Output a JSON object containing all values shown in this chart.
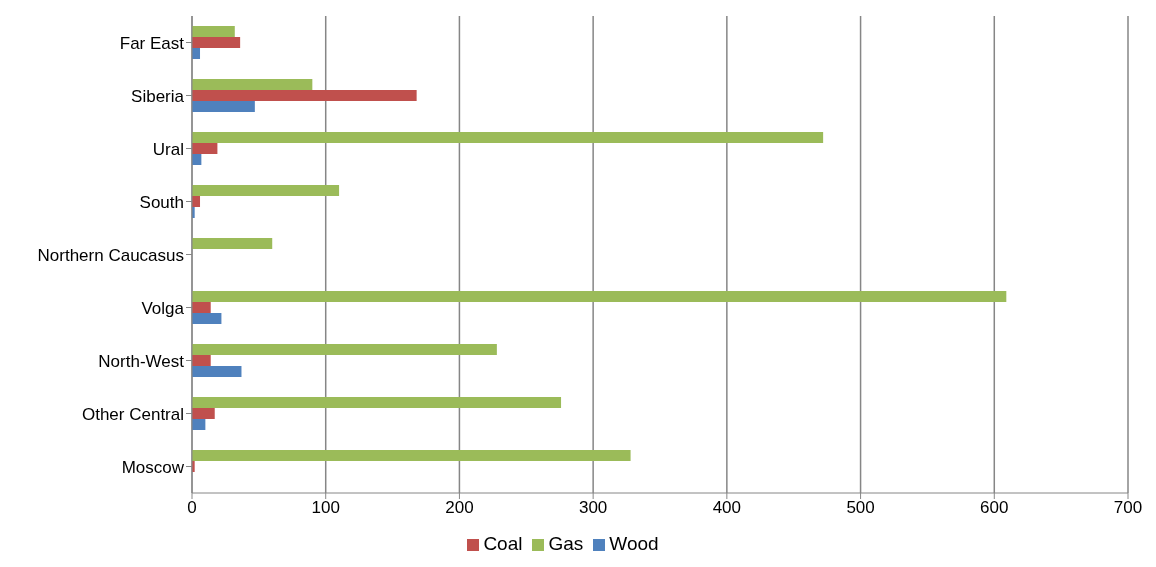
{
  "chart_data": {
    "type": "bar",
    "orientation": "horizontal",
    "categories": [
      "Far East",
      "Siberia",
      "Ural",
      "South",
      "Northern Caucasus",
      "Volga",
      "North-West",
      "Other Central",
      "Moscow"
    ],
    "series": [
      {
        "name": "Gas",
        "color": "#9bbb59",
        "values": [
          32,
          90,
          472,
          110,
          60,
          609,
          228,
          276,
          328
        ]
      },
      {
        "name": "Coal",
        "color": "#c0504d",
        "values": [
          36,
          168,
          19,
          6,
          0,
          14,
          14,
          17,
          2
        ]
      },
      {
        "name": "Wood",
        "color": "#4f81bd",
        "values": [
          6,
          47,
          7,
          2,
          0,
          22,
          37,
          10,
          0
        ]
      }
    ],
    "xlim": [
      0,
      700
    ],
    "xticks": [
      0,
      100,
      200,
      300,
      400,
      500,
      600,
      700
    ],
    "grid": "x",
    "legend": "bottom"
  }
}
